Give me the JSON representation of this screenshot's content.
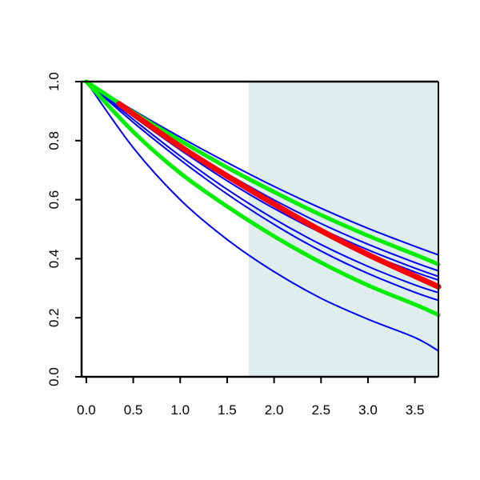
{
  "chart_data": {
    "type": "line",
    "title": "",
    "xlabel": "",
    "ylabel": "",
    "xlim": [
      -0.05,
      3.75
    ],
    "ylim": [
      0.0,
      1.0
    ],
    "x_ticks": [
      "0.0",
      "0.5",
      "1.0",
      "1.5",
      "2.0",
      "2.5",
      "3.0",
      "3.5"
    ],
    "y_ticks": [
      "0.0",
      "0.2",
      "0.4",
      "0.6",
      "0.8",
      "1.0"
    ],
    "shaded_region": {
      "x_start": 1.73,
      "x_end": 3.75,
      "color": "#e0eded"
    },
    "grid": false,
    "legend": "none",
    "series": [
      {
        "color": "#0000ff",
        "width": "thin",
        "x": [
          0,
          0.5,
          1.0,
          1.5,
          2.0,
          2.5,
          3.0,
          3.5,
          3.75
        ],
        "y": [
          1.0,
          0.872,
          0.748,
          0.635,
          0.535,
          0.448,
          0.374,
          0.311,
          0.285
        ]
      },
      {
        "color": "#0000ff",
        "width": "thin",
        "x": [
          0,
          0.5,
          1.0,
          1.5,
          2.0,
          2.5,
          3.0,
          3.5,
          3.75
        ],
        "y": [
          1.0,
          0.882,
          0.769,
          0.664,
          0.57,
          0.488,
          0.417,
          0.355,
          0.328
        ]
      },
      {
        "color": "#0000ff",
        "width": "thin",
        "x": [
          0,
          0.5,
          1.0,
          1.5,
          2.0,
          2.5,
          3.0,
          3.5,
          3.75
        ],
        "y": [
          1.0,
          0.885,
          0.776,
          0.675,
          0.583,
          0.501,
          0.43,
          0.368,
          0.34
        ]
      },
      {
        "color": "#0000ff",
        "width": "thin",
        "x": [
          0,
          0.5,
          1.0,
          1.5,
          2.0,
          2.5,
          3.0,
          3.5,
          3.75
        ],
        "y": [
          1.0,
          0.889,
          0.785,
          0.688,
          0.599,
          0.519,
          0.449,
          0.387,
          0.359
        ]
      },
      {
        "color": "#0000ff",
        "width": "thin",
        "x": [
          0,
          0.5,
          1.0,
          1.5,
          2.0,
          2.5,
          3.0,
          3.5,
          3.75
        ],
        "y": [
          1.0,
          0.903,
          0.812,
          0.726,
          0.645,
          0.571,
          0.503,
          0.442,
          0.413
        ]
      },
      {
        "color": "#0000ff",
        "width": "thin",
        "x": [
          0,
          0.5,
          1.0,
          1.5,
          2.0,
          2.5,
          3.0,
          3.5,
          3.75
        ],
        "y": [
          1.0,
          0.862,
          0.735,
          0.619,
          0.516,
          0.426,
          0.35,
          0.286,
          0.259
        ]
      },
      {
        "color": "#0000ff",
        "width": "thin",
        "x": [
          0,
          0.5,
          1.0,
          1.5,
          2.0,
          2.5,
          3.0,
          3.5,
          3.75
        ],
        "y": [
          1.0,
          0.776,
          0.6,
          0.465,
          0.356,
          0.266,
          0.195,
          0.133,
          0.088
        ]
      },
      {
        "color": "#00ee00",
        "width": "thick",
        "x": [
          0,
          0.5,
          1.0,
          1.5,
          2.0,
          2.5,
          3.0,
          3.5,
          3.75
        ],
        "y": [
          1.0,
          0.896,
          0.8,
          0.709,
          0.626,
          0.548,
          0.478,
          0.414,
          0.381
        ]
      },
      {
        "color": "#00ee00",
        "width": "thick",
        "x": [
          0,
          0.5,
          1.0,
          1.5,
          2.0,
          2.5,
          3.0,
          3.5,
          3.75
        ],
        "y": [
          1.0,
          0.83,
          0.69,
          0.577,
          0.476,
          0.387,
          0.31,
          0.245,
          0.21
        ]
      },
      {
        "color": "#ff0000",
        "width": "thick",
        "x": [
          0.35,
          0.5,
          1.0,
          1.5,
          2.0,
          2.5,
          3.0,
          3.5,
          3.75
        ],
        "y": [
          0.925,
          0.89,
          0.78,
          0.68,
          0.585,
          0.495,
          0.414,
          0.341,
          0.305
        ]
      }
    ]
  }
}
